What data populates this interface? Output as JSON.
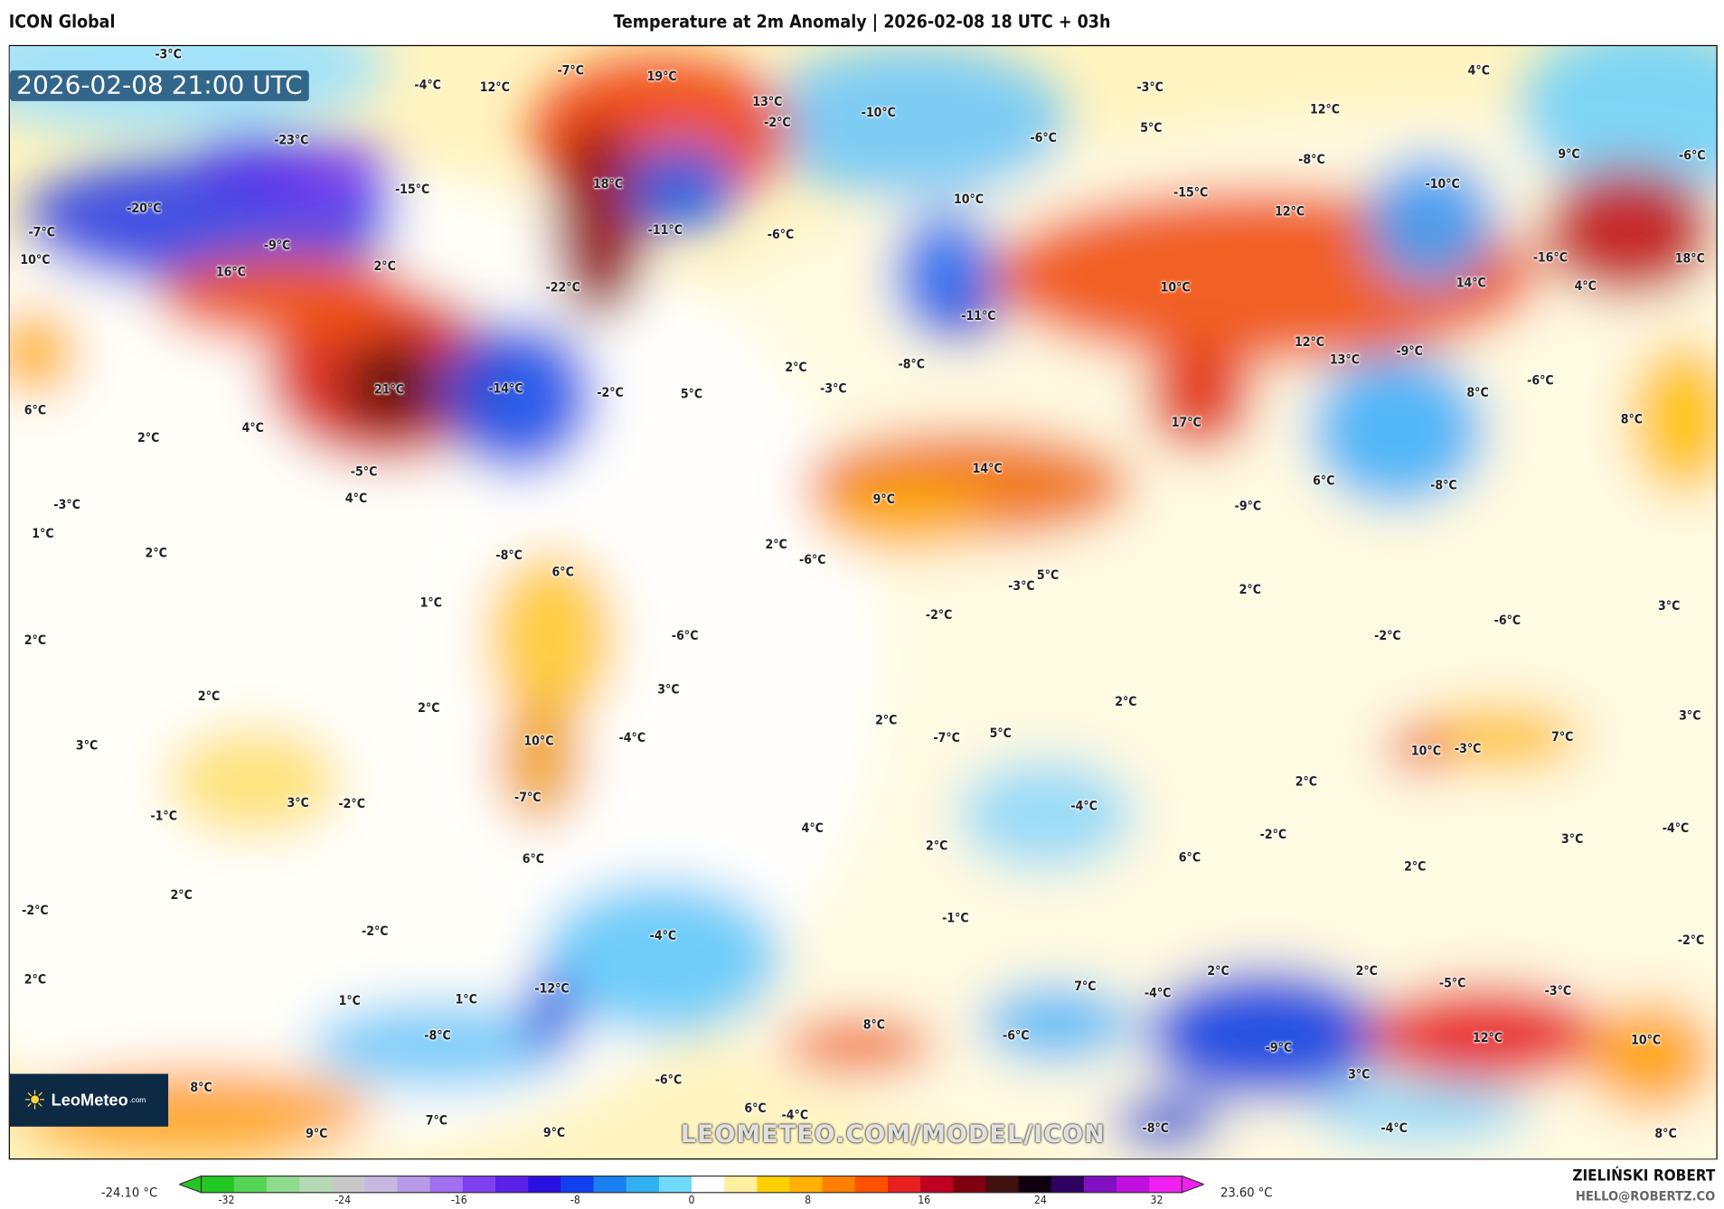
{
  "header": {
    "model": "ICON Global",
    "title": "Temperature at 2m Anomaly | 2026-02-08 18 UTC + 03h"
  },
  "map": {
    "valid_time": "2026-02-08 21:00 UTC",
    "watermark": "LEOMETEO.COM/MODEL/ICON",
    "logo": {
      "name": "LeoMeteo",
      "suffix": ".com",
      "icon": "sun-icon"
    },
    "labels": [
      "-3°C",
      "-4°C",
      "12°C",
      "-7°C",
      "19°C",
      "13°C",
      "-2°C",
      "-10°C",
      "-3°C",
      "4°C",
      "12°C",
      "-6°C",
      "5°C",
      "-23°C",
      "-8°C",
      "9°C",
      "-6°C",
      "-15°C",
      "18°C",
      "-10°C",
      "-15°C",
      "-20°C",
      "-7°C",
      "-9°C",
      "-11°C",
      "-6°C",
      "10°C",
      "12°C",
      "10°C",
      "16°C",
      "2°C",
      "-16°C",
      "18°C",
      "-22°C",
      "10°C",
      "14°C",
      "4°C",
      "-11°C",
      "12°C",
      "2°C",
      "-8°C",
      "13°C",
      "-9°C",
      "-3°C",
      "-14°C",
      "-2°C",
      "21°C",
      "5°C",
      "8°C",
      "-6°C",
      "6°C",
      "4°C",
      "2°C",
      "17°C",
      "8°C",
      "-5°C",
      "14°C",
      "6°C",
      "-8°C",
      "4°C",
      "-3°C",
      "9°C",
      "-9°C",
      "1°C",
      "2°C",
      "2°C",
      "-8°C",
      "6°C",
      "-6°C",
      "5°C",
      "-3°C",
      "2°C",
      "1°C",
      "-2°C",
      "3°C",
      "-6°C",
      "2°C",
      "-6°C",
      "-2°C",
      "2°C",
      "3°C",
      "2°C",
      "2°C",
      "2°C",
      "3°C",
      "3°C",
      "-4°C",
      "-7°C",
      "5°C",
      "7°C",
      "10°C",
      "10°C",
      "-3°C",
      "2°C",
      "3°C",
      "-2°C",
      "-7°C",
      "-1°C",
      "-4°C",
      "4°C",
      "-2°C",
      "-4°C",
      "2°C",
      "3°C",
      "6°C",
      "6°C",
      "2°C",
      "2°C",
      "-2°C",
      "-1°C",
      "-2°C",
      "-4°C",
      "-2°C",
      "2°C",
      "2°C",
      "2°C",
      "-12°C",
      "7°C",
      "-4°C",
      "-5°C",
      "-3°C",
      "1°C",
      "1°C",
      "-8°C",
      "8°C",
      "-6°C",
      "-9°C",
      "12°C",
      "10°C",
      "8°C",
      "-6°C",
      "3°C",
      "6°C",
      "-4°C",
      "9°C",
      "7°C",
      "9°C",
      "-8°C",
      "-4°C",
      "8°C"
    ]
  },
  "colorbar": {
    "min_label": "-24.10 °C",
    "max_label": "23.60 °C",
    "ticks": [
      "-32",
      "-24",
      "-16",
      "-8",
      "0",
      "8",
      "16",
      "24",
      "32"
    ],
    "range": [
      -32,
      32
    ],
    "colors": [
      "#22c722",
      "#55d455",
      "#8fdc8f",
      "#b5d8b5",
      "#c8c8c8",
      "#c8b8e0",
      "#b89ae8",
      "#a070f0",
      "#8040f0",
      "#5a20e8",
      "#2a10e0",
      "#1040f0",
      "#1a80f0",
      "#30b0f0",
      "#70d8f8",
      "#ffffff",
      "#fff0a0",
      "#ffd000",
      "#ffb000",
      "#ff8000",
      "#ff5000",
      "#e82020",
      "#c00020",
      "#800010",
      "#401010",
      "#100010",
      "#300060",
      "#8010c0",
      "#c010e0",
      "#f020f0"
    ]
  },
  "credits": {
    "author": "ZIELIŃSKI ROBERT",
    "email": "HELLO@ROBERTZ.CO"
  }
}
